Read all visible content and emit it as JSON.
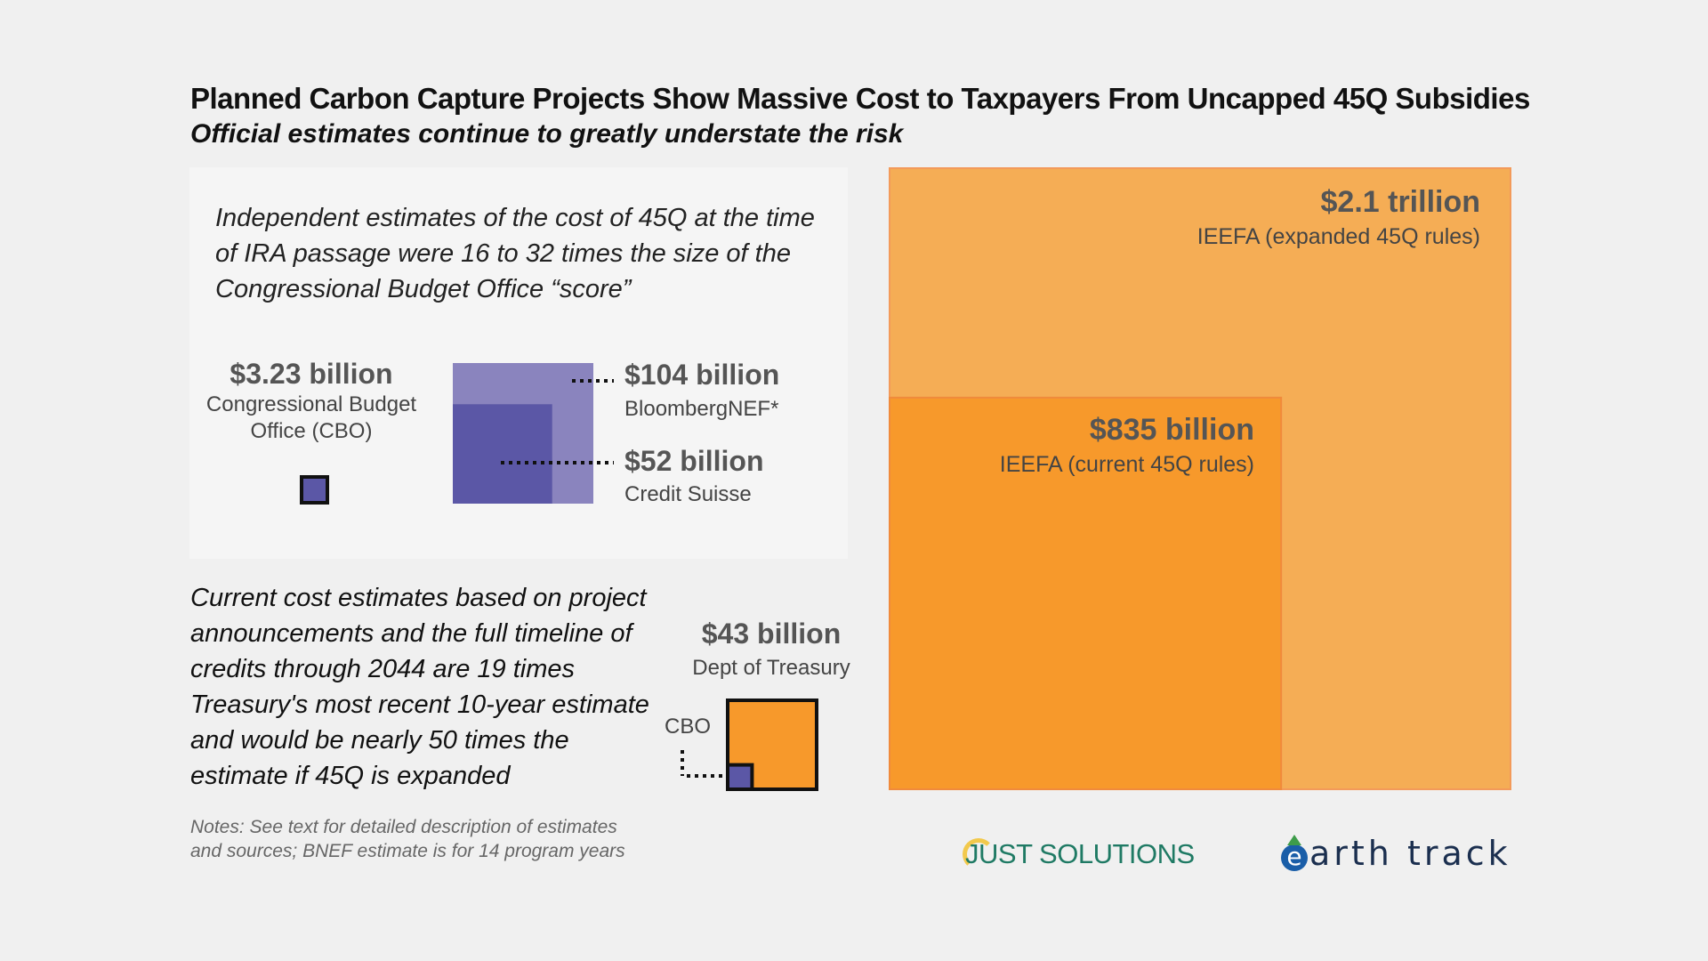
{
  "title": "Planned Carbon Capture Projects Show Massive Cost to Taxpayers From Uncapped 45Q Subsidies",
  "subtitle": "Official estimates continue to greatly understate the risk",
  "intro_text": "Independent estimates of the cost of 45Q at the time of IRA passage were 16 to 32 times the size of the Congressional Budget Office “score”",
  "current_text": "Current cost estimates based on project announcements and the full timeline of credits through 2044 are 19 times Treasury's most recent 10-year estimate and would be nearly 50 times the estimate if 45Q is expanded",
  "notes": "Notes: See text for detailed description of estimates and sources; BNEF estimate is for 14 program years",
  "cbo_small_label": "CBO",
  "logos": {
    "just_solutions": "JUST SOLUTIONS",
    "earth_track_e": "e",
    "earth_track_rest": "arth track"
  },
  "colors": {
    "purple_light": "#8a84be",
    "purple_dark": "#5b57a6",
    "orange_light": "#f5ad55",
    "orange_dark": "#f7992b"
  },
  "chart_data": {
    "type": "area-proportional squares",
    "unit": "billion USD",
    "estimates": [
      {
        "value": 3.23,
        "value_label": "$3.23 billion",
        "source": "Congressional Budget Office (CBO)"
      },
      {
        "value": 104,
        "value_label": "$104 billion",
        "source": "BloombergNEF*"
      },
      {
        "value": 52,
        "value_label": "$52 billion",
        "source": "Credit Suisse"
      },
      {
        "value": 43,
        "value_label": "$43 billion",
        "source": "Dept of Treasury"
      },
      {
        "value": 2100,
        "value_label": "$2.1 trillion",
        "source": "IEEFA (expanded 45Q rules)"
      },
      {
        "value": 835,
        "value_label": "$835 billion",
        "source": "IEEFA (current 45Q rules)"
      }
    ]
  }
}
